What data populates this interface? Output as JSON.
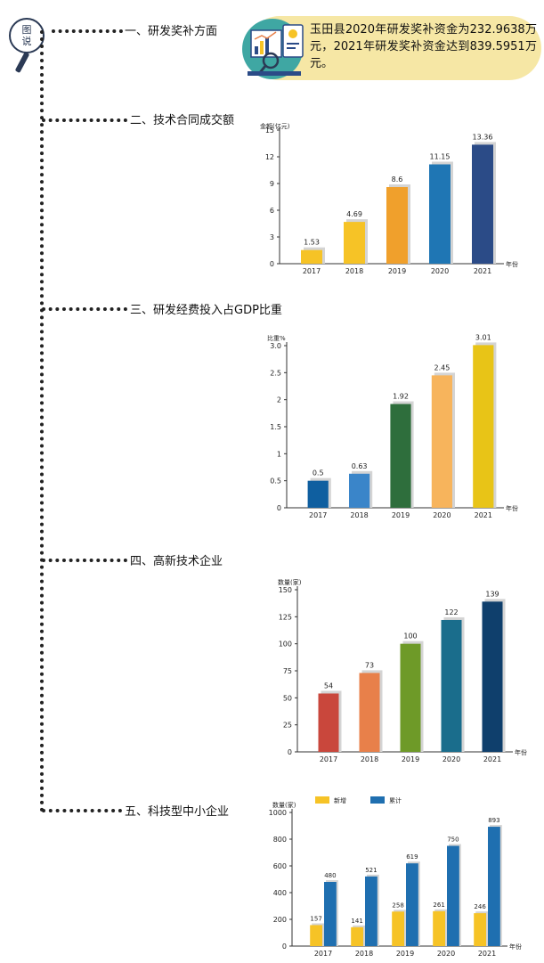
{
  "badge": {
    "line1": "图",
    "line2": "说"
  },
  "sections": [
    {
      "title": "一、研发奖补方面"
    },
    {
      "title": "二、技术合同成交额"
    },
    {
      "title": "三、研发经费投入占GDP比重"
    },
    {
      "title": "四、高新技术企业"
    },
    {
      "title": "五、科技型中小企业"
    }
  ],
  "summary": {
    "text": "玉田县2020年研发奖补资金为232.9638万元，2021年研发奖补资金达到839.5951万元。"
  },
  "charts": [
    {
      "type": "bar",
      "ylabel": "金额(亿元)",
      "xlabel": "年份",
      "categories": [
        "2017",
        "2018",
        "2019",
        "2020",
        "2021"
      ],
      "values": [
        1.53,
        4.69,
        8.6,
        11.15,
        13.36
      ],
      "value_labels": [
        "1.53",
        "4.69",
        "8.6",
        "11.15",
        "13.36"
      ],
      "ylim": [
        0,
        15
      ],
      "yticks": [
        0,
        3,
        6,
        9,
        12,
        15
      ],
      "ytick_labels": [
        "0",
        "3",
        "6",
        "9",
        "12",
        "15"
      ],
      "colors": [
        "#f6c326",
        "#f6c326",
        "#f0a02c",
        "#1f76b4",
        "#2b4b87"
      ]
    },
    {
      "type": "bar",
      "ylabel": "比重%",
      "xlabel": "年份",
      "categories": [
        "2017",
        "2018",
        "2019",
        "2020",
        "2021"
      ],
      "values": [
        0.5,
        0.63,
        1.92,
        2.45,
        3.01
      ],
      "value_labels": [
        "0.5",
        "0.63",
        "1.92",
        "2.45",
        "3.01"
      ],
      "ylim": [
        0,
        3.0
      ],
      "yticks": [
        0,
        0.5,
        1,
        1.5,
        2,
        2.5,
        3.0
      ],
      "ytick_labels": [
        "0",
        "0.5",
        "1",
        "1.5",
        "2",
        "2.5",
        "3.0"
      ],
      "colors": [
        "#0f5fa0",
        "#3a85c9",
        "#2e6e3c",
        "#f7b45c",
        "#e8c417"
      ]
    },
    {
      "type": "bar",
      "ylabel": "数量(家)",
      "xlabel": "年份",
      "categories": [
        "2017",
        "2018",
        "2019",
        "2020",
        "2021"
      ],
      "values": [
        54,
        73,
        100,
        122,
        139
      ],
      "value_labels": [
        "54",
        "73",
        "100",
        "122",
        "139"
      ],
      "ylim": [
        0,
        150
      ],
      "yticks": [
        0,
        25,
        50,
        75,
        100,
        125,
        150
      ],
      "ytick_labels": [
        "0",
        "25",
        "50",
        "75",
        "100",
        "125",
        "150"
      ],
      "colors": [
        "#c9473c",
        "#e8804a",
        "#6e9a28",
        "#1a6d8c",
        "#0f3f6c"
      ]
    },
    {
      "type": "grouped_bar",
      "ylabel": "数量(家)",
      "xlabel": "年份",
      "categories": [
        "2017",
        "2018",
        "2019",
        "2020",
        "2021"
      ],
      "series": [
        {
          "name": "新增",
          "values": [
            157,
            141,
            258,
            261,
            246
          ],
          "labels": [
            "157",
            "141",
            "258",
            "261",
            "246"
          ],
          "color": "#f6c326"
        },
        {
          "name": "累计",
          "values": [
            480,
            521,
            619,
            750,
            893
          ],
          "labels": [
            "480",
            "521",
            "619",
            "750",
            "893"
          ],
          "color": "#1f6fb0"
        }
      ],
      "ylim": [
        0,
        1000
      ],
      "yticks": [
        0,
        200,
        400,
        600,
        800,
        1000
      ],
      "ytick_labels": [
        "0",
        "200",
        "400",
        "600",
        "800",
        "1000"
      ]
    }
  ]
}
